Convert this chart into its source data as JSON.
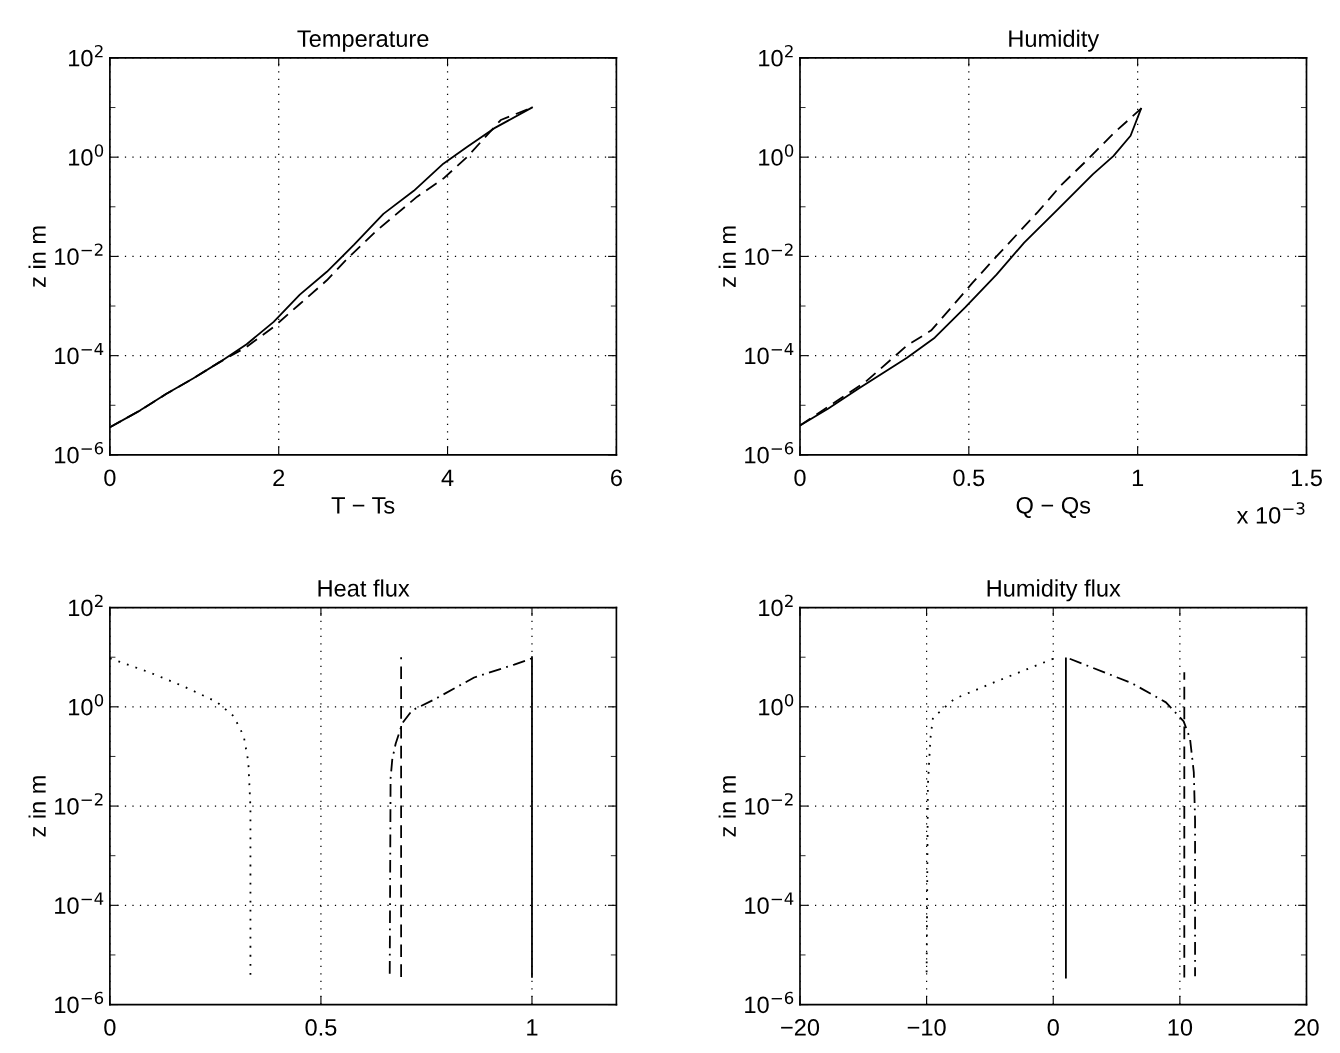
{
  "chart_data": [
    {
      "type": "line",
      "title": "Temperature",
      "xlabel": "T − Ts",
      "ylabel": "z in m",
      "log": "y",
      "grid": true,
      "xlim": [
        0,
        6
      ],
      "xticks": [
        0,
        2,
        4,
        6
      ],
      "ylim": [
        1e-06,
        100
      ],
      "yticks": [
        {
          "value": 1e-06,
          "label": "10$^{−6}$"
        },
        {
          "value": 1e-05,
          "label": null
        },
        {
          "value": 0.0001,
          "label": "10$^{−4}$"
        },
        {
          "value": 0.001,
          "label": null
        },
        {
          "value": 0.01,
          "label": "10$^{−2}$"
        },
        {
          "value": 0.1,
          "label": null
        },
        {
          "value": 1,
          "label": "10$^{0}$"
        },
        {
          "value": 10,
          "label": null
        },
        {
          "value": 100,
          "label": "10$^{2}$"
        }
      ],
      "series": [
        {
          "color": "#000000",
          "line_style": "solid",
          "x": [
            0,
            0.36,
            0.67,
            0.99,
            1.3,
            1.62,
            1.94,
            2.25,
            2.57,
            2.89,
            3.24,
            3.6,
            3.95,
            4.23,
            4.55,
            5.0
          ],
          "values": [
            3.6e-06,
            7.9e-06,
            1.7e-05,
            3.5e-05,
            7.4e-05,
            0.00017,
            0.00048,
            0.0017,
            0.0049,
            0.017,
            0.072,
            0.21,
            0.74,
            1.6,
            3.8,
            10
          ]
        },
        {
          "color": "#000000",
          "line_style": "dashed",
          "x": [
            0,
            0.36,
            0.67,
            0.99,
            1.3,
            1.62,
            1.94,
            2.25,
            2.57,
            2.81,
            3.16,
            3.64,
            3.95,
            4.23,
            4.63,
            5.0
          ],
          "values": [
            3.6e-06,
            7.9e-06,
            1.7e-05,
            3.5e-05,
            7.4e-05,
            0.00015,
            0.00038,
            0.0011,
            0.0033,
            0.0089,
            0.033,
            0.16,
            0.37,
            1.0,
            5.6,
            10
          ]
        }
      ]
    },
    {
      "type": "line",
      "title": "Humidity",
      "xlabel": "Q − Qs",
      "ylabel": "z in m",
      "log": "y",
      "grid": true,
      "annotations": [
        "x 10$^{−3}$"
      ],
      "xlim": [
        0,
        1.5
      ],
      "xticks": [
        0,
        0.5,
        1,
        1.5
      ],
      "ylim": [
        1e-06,
        100
      ],
      "yticks": [
        {
          "value": 1e-06,
          "label": "10$^{−6}$"
        },
        {
          "value": 1e-05,
          "label": null
        },
        {
          "value": 0.0001,
          "label": "10$^{−4}$"
        },
        {
          "value": 0.001,
          "label": null
        },
        {
          "value": 0.01,
          "label": "10$^{−2}$"
        },
        {
          "value": 0.1,
          "label": null
        },
        {
          "value": 1,
          "label": "10$^{0}$"
        },
        {
          "value": 10,
          "label": null
        },
        {
          "value": 100,
          "label": "10$^{2}$"
        }
      ],
      "series": [
        {
          "color": "#000000",
          "line_style": "solid",
          "x": [
            0,
            0.083,
            0.175,
            0.317,
            0.399,
            0.49,
            0.582,
            0.664,
            0.765,
            0.867,
            0.928,
            0.979,
            1.01
          ],
          "values": [
            3.9e-06,
            8.5e-06,
            2.2e-05,
            9.1e-05,
            0.00023,
            0.00095,
            0.0043,
            0.019,
            0.091,
            0.45,
            1.05,
            2.7,
            9.5
          ]
        },
        {
          "color": "#000000",
          "line_style": "dashed",
          "x": [
            0,
            0.195,
            0.317,
            0.388,
            0.449,
            0.51,
            0.582,
            0.643,
            0.704,
            0.775,
            0.847,
            0.928,
            1.01
          ],
          "values": [
            3.9e-06,
            3e-05,
            0.00016,
            0.00032,
            0.00095,
            0.0029,
            0.01,
            0.028,
            0.078,
            0.28,
            0.83,
            3.0,
            9.5
          ]
        }
      ]
    },
    {
      "type": "line",
      "title": "Heat flux",
      "ylabel": "z in m",
      "log": "y",
      "grid": true,
      "xlim": [
        0,
        1.2
      ],
      "xticks": [
        0,
        0.5,
        1
      ],
      "ylim": [
        1e-06,
        100
      ],
      "yticks": [
        {
          "value": 1e-06,
          "label": "10$^{−6}$"
        },
        {
          "value": 1e-05,
          "label": null
        },
        {
          "value": 0.0001,
          "label": "10$^{−4}$"
        },
        {
          "value": 0.001,
          "label": null
        },
        {
          "value": 0.01,
          "label": "10$^{−2}$"
        },
        {
          "value": 0.1,
          "label": null
        },
        {
          "value": 1,
          "label": "10$^{0}$"
        },
        {
          "value": 10,
          "label": null
        },
        {
          "value": 100,
          "label": "10$^{2}$"
        }
      ],
      "series": [
        {
          "color": "#000000",
          "line_style": "solid",
          "x": [
            1,
            1
          ],
          "values": [
            3.6e-06,
            10
          ]
        },
        {
          "color": "#000000",
          "line_style": "dashed",
          "x": [
            0.69,
            0.69
          ],
          "values": [
            3.6e-06,
            10
          ]
        },
        {
          "color": "#000000",
          "line_style": "dashdot",
          "x": [
            0.663,
            0.665,
            0.669,
            0.677,
            0.693,
            0.716,
            0.768,
            0.863,
            0.958,
            1.0
          ],
          "values": [
            4.2e-06,
            0.036,
            0.087,
            0.18,
            0.47,
            0.85,
            1.4,
            3.9,
            7.1,
            9.5
          ]
        },
        {
          "color": "#000000",
          "line_style": "dotted",
          "x": [
            0,
            0.095,
            0.174,
            0.253,
            0.293,
            0.317,
            0.328,
            0.333,
            0.333
          ],
          "values": [
            9.5,
            4.9,
            2.6,
            1.26,
            0.65,
            0.26,
            0.078,
            0.0093,
            3.9e-06
          ]
        }
      ]
    },
    {
      "type": "line",
      "title": "Humidity flux",
      "ylabel": "z in m",
      "log": "y",
      "grid": true,
      "xlim": [
        -20,
        20
      ],
      "xticks": [
        {
          "value": -20,
          "label": "−20"
        },
        {
          "value": -10,
          "label": "−10"
        },
        0,
        10,
        20
      ],
      "ylim": [
        1e-06,
        100
      ],
      "yticks": [
        {
          "value": 1e-06,
          "label": "10$^{−6}$"
        },
        {
          "value": 1e-05,
          "label": null
        },
        {
          "value": 0.0001,
          "label": "10$^{−4}$"
        },
        {
          "value": 0.001,
          "label": null
        },
        {
          "value": 0.01,
          "label": "10$^{−2}$"
        },
        {
          "value": 0.1,
          "label": null
        },
        {
          "value": 1,
          "label": "10$^{0}$"
        },
        {
          "value": 10,
          "label": null
        },
        {
          "value": 100,
          "label": "10$^{2}$"
        }
      ],
      "series": [
        {
          "color": "#000000",
          "line_style": "solid",
          "x": [
            1,
            1
          ],
          "values": [
            3.5e-06,
            9.5
          ]
        },
        {
          "color": "#000000",
          "line_style": "dashed",
          "x": [
            10.35,
            10.35
          ],
          "values": [
            3.5e-06,
            5
          ]
        },
        {
          "color": "#000000",
          "line_style": "dashdot",
          "x": [
            1.3,
            6.2,
            8.9,
            10.3,
            10.8,
            11.1,
            11.2,
            11.2
          ],
          "values": [
            9.3,
            3.0,
            1.23,
            0.51,
            0.23,
            0.048,
            0.0052,
            3.7e-06
          ]
        },
        {
          "color": "#000000",
          "line_style": "dotted",
          "x": [
            0,
            -4.3,
            -7.8,
            -9.5,
            -9.7,
            -9.9,
            -10.0
          ],
          "values": [
            9.3,
            3.4,
            1.45,
            0.6,
            0.23,
            0.026,
            3.8e-06
          ]
        }
      ]
    }
  ]
}
